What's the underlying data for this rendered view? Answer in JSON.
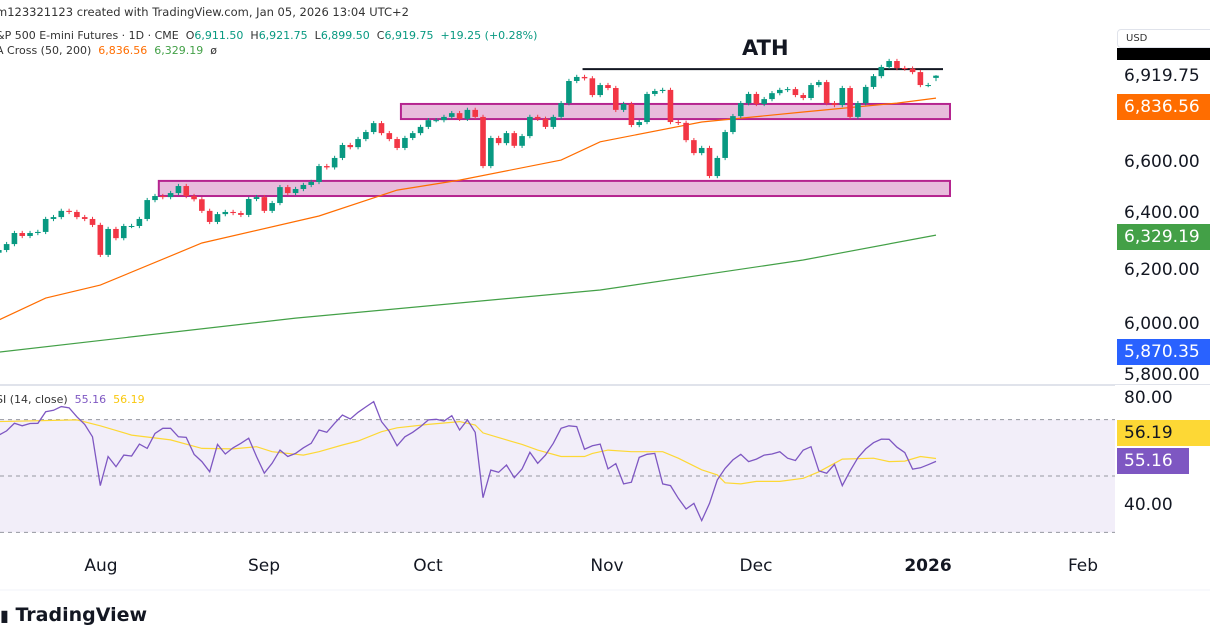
{
  "header": {
    "credit": "m123321123 created with TradingView.com, Jan 05, 2026 13:04 UTC+2",
    "symbol": "&P 500 E-mini Futures · 1D · CME",
    "open_label": "O",
    "open": "6,911.50",
    "high_label": "H",
    "high": "6,921.75",
    "low_label": "L",
    "low": "6,899.50",
    "close_label": "C",
    "close": "6,919.75",
    "change": "+19.25 (+0.28%)",
    "ma_name": "A Cross (50, 200)",
    "ma_fast": "6,836.56",
    "ma_slow": "6,329.19",
    "ma_extra": "ø"
  },
  "rsi_legend": {
    "name": "SI (14, close)",
    "rsi": "55.16",
    "rsi_ma": "56.19"
  },
  "price_scale": {
    "currency": "USD",
    "ticks": [
      "6,600.00",
      "6,400.00",
      "6,200.00",
      "6,000.00",
      "5,800.00"
    ],
    "last_price": "6,919.75",
    "ma_fast_label": "6,836.56",
    "ma_slow_label": "6,329.19",
    "blue_label": "5,870.35"
  },
  "rsi_scale": {
    "ticks": [
      "80.00",
      "40.00"
    ],
    "rsi_ma_label": "56.19",
    "rsi_label": "55.16"
  },
  "time_axis": {
    "ticks": [
      "Aug",
      "Sep",
      "Oct",
      "Nov",
      "Dec",
      "2026",
      "Feb"
    ]
  },
  "annotation": {
    "ath_label": "ATH"
  },
  "logo": {
    "text": "TradingView"
  },
  "colors": {
    "up": "#089981",
    "down": "#f23645",
    "ma_fast": "#ff6d00",
    "ma_slow": "#43a047",
    "rsi": "#7e57c2",
    "rsi_ma": "#fdd835",
    "zone_fill": "#e8bcdc",
    "zone_border": "#b5248f",
    "blue_label": "#2962ff"
  },
  "chart_data": {
    "type": "candlestick",
    "title": "",
    "x_ticks": [
      "Aug",
      "Sep",
      "Oct",
      "Nov",
      "Dec",
      "2026",
      "Feb"
    ],
    "ylim": [
      5780,
      7020
    ],
    "last": {
      "open": 6911.5,
      "high": 6921.75,
      "low": 6899.5,
      "close": 6919.75
    },
    "closes": [
      6274,
      6296,
      6337,
      6326,
      6337,
      6341,
      6389,
      6396,
      6419,
      6415,
      6396,
      6389,
      6367,
      6256,
      6352,
      6318,
      6363,
      6363,
      6389,
      6459,
      6474,
      6470,
      6485,
      6511,
      6474,
      6462,
      6419,
      6378,
      6407,
      6415,
      6411,
      6404,
      6463,
      6470,
      6419,
      6448,
      6507,
      6485,
      6500,
      6515,
      6526,
      6585,
      6580,
      6615,
      6663,
      6655,
      6685,
      6711,
      6744,
      6707,
      6685,
      6652,
      6689,
      6707,
      6730,
      6755,
      6755,
      6767,
      6781,
      6760,
      6793,
      6767,
      6585,
      6689,
      6670,
      6707,
      6660,
      6696,
      6767,
      6760,
      6730,
      6767,
      6818,
      6900,
      6915,
      6910,
      6848,
      6885,
      6874,
      6793,
      6815,
      6737,
      6748,
      6852,
      6863,
      6867,
      6748,
      6745,
      6681,
      6633,
      6652,
      6548,
      6615,
      6711,
      6770,
      6818,
      6852,
      6815,
      6833,
      6855,
      6867,
      6870,
      6848,
      6837,
      6885,
      6896,
      6818,
      6811,
      6874,
      6767,
      6818,
      6878,
      6918,
      6952,
      6974,
      6948,
      6946,
      6933,
      6885,
      6885,
      6919.75
    ],
    "ma50_points": [
      [
        0,
        6015
      ],
      [
        6,
        6096
      ],
      [
        13,
        6144
      ],
      [
        26,
        6300
      ],
      [
        41,
        6400
      ],
      [
        51,
        6496
      ],
      [
        59,
        6533
      ],
      [
        72,
        6607
      ],
      [
        77,
        6675
      ],
      [
        90,
        6748
      ],
      [
        103,
        6785
      ],
      [
        115,
        6818
      ],
      [
        120,
        6836.56
      ]
    ],
    "ma200_points": [
      [
        0,
        5896
      ],
      [
        38,
        6022
      ],
      [
        77,
        6126
      ],
      [
        103,
        6237
      ],
      [
        120,
        6329.19
      ]
    ],
    "zones": [
      {
        "top": 6815,
        "bottom": 6759,
        "from_bar": 52
      },
      {
        "top": 6530,
        "bottom": 6474,
        "from_bar": 21
      }
    ],
    "ath_line": {
      "price": 6944,
      "from_bar": 75
    },
    "rsi": {
      "ylim": [
        25,
        85
      ],
      "levels": [
        70,
        50,
        30
      ],
      "values": [
        64.5,
        66.0,
        68.7,
        67.8,
        68.6,
        68.7,
        72.8,
        73.3,
        74.6,
        74.2,
        71.0,
        68.3,
        63.9,
        46.6,
        56.9,
        53.3,
        57.4,
        57.1,
        61.3,
        59.8,
        65.1,
        66.9,
        66.9,
        63.9,
        63.7,
        57.7,
        55.1,
        51.5,
        61.2,
        57.8,
        60.0,
        61.6,
        63.4,
        56.9,
        51.0,
        54.5,
        59.2,
        56.9,
        58.0,
        60.0,
        61.6,
        66.3,
        65.5,
        68.7,
        71.6,
        70.2,
        72.6,
        74.5,
        76.4,
        69.3,
        65.8,
        60.7,
        63.9,
        65.5,
        67.5,
        69.9,
        70.1,
        69.5,
        71.4,
        66.3,
        69.9,
        65.5,
        42.3,
        52.1,
        51.3,
        53.9,
        49.4,
        52.5,
        58.4,
        54.5,
        57.4,
        61.6,
        66.9,
        67.8,
        67.5,
        59.5,
        60.7,
        61.3,
        52.5,
        54.4,
        47.2,
        47.8,
        56.6,
        57.7,
        58.0,
        47.2,
        46.6,
        42.1,
        38.3,
        40.3,
        34.2,
        40.3,
        48.6,
        52.7,
        55.7,
        57.7,
        55.1,
        56.0,
        57.4,
        57.8,
        58.6,
        56.3,
        55.5,
        59.2,
        60.4,
        51.8,
        51.0,
        54.1,
        46.6,
        51.8,
        56.5,
        59.6,
        61.8,
        63.1,
        63.0,
        60.2,
        58.3,
        52.4,
        52.9,
        54.0,
        55.16
      ],
      "ma_points": [
        [
          0,
          69.3
        ],
        [
          10,
          69.9
        ],
        [
          13,
          67.8
        ],
        [
          17,
          64.5
        ],
        [
          22,
          62.8
        ],
        [
          26,
          59.8
        ],
        [
          30,
          59.6
        ],
        [
          33,
          60.4
        ],
        [
          35,
          58.6
        ],
        [
          39,
          57.4
        ],
        [
          41,
          58.6
        ],
        [
          44,
          61
        ],
        [
          46,
          62.4
        ],
        [
          49,
          65.7
        ],
        [
          51,
          67.1
        ],
        [
          55,
          68.3
        ],
        [
          59,
          69.3
        ],
        [
          61,
          68.1
        ],
        [
          62,
          65.3
        ],
        [
          64,
          63.6
        ],
        [
          67,
          61.2
        ],
        [
          69,
          59.2
        ],
        [
          72,
          56.9
        ],
        [
          75,
          56.9
        ],
        [
          76,
          58
        ],
        [
          78,
          59.2
        ],
        [
          81,
          58.6
        ],
        [
          85,
          58.6
        ],
        [
          87,
          56.3
        ],
        [
          90,
          52.2
        ],
        [
          92,
          50.4
        ],
        [
          93,
          47.6
        ],
        [
          95,
          47.2
        ],
        [
          97,
          48.1
        ],
        [
          100,
          48.1
        ],
        [
          103,
          49.2
        ],
        [
          105,
          51.5
        ],
        [
          107,
          54.5
        ],
        [
          108,
          56.0
        ],
        [
          112,
          56.3
        ],
        [
          114,
          55.1
        ],
        [
          116,
          55.3
        ],
        [
          118,
          56.9
        ],
        [
          120,
          56.19
        ]
      ]
    }
  }
}
